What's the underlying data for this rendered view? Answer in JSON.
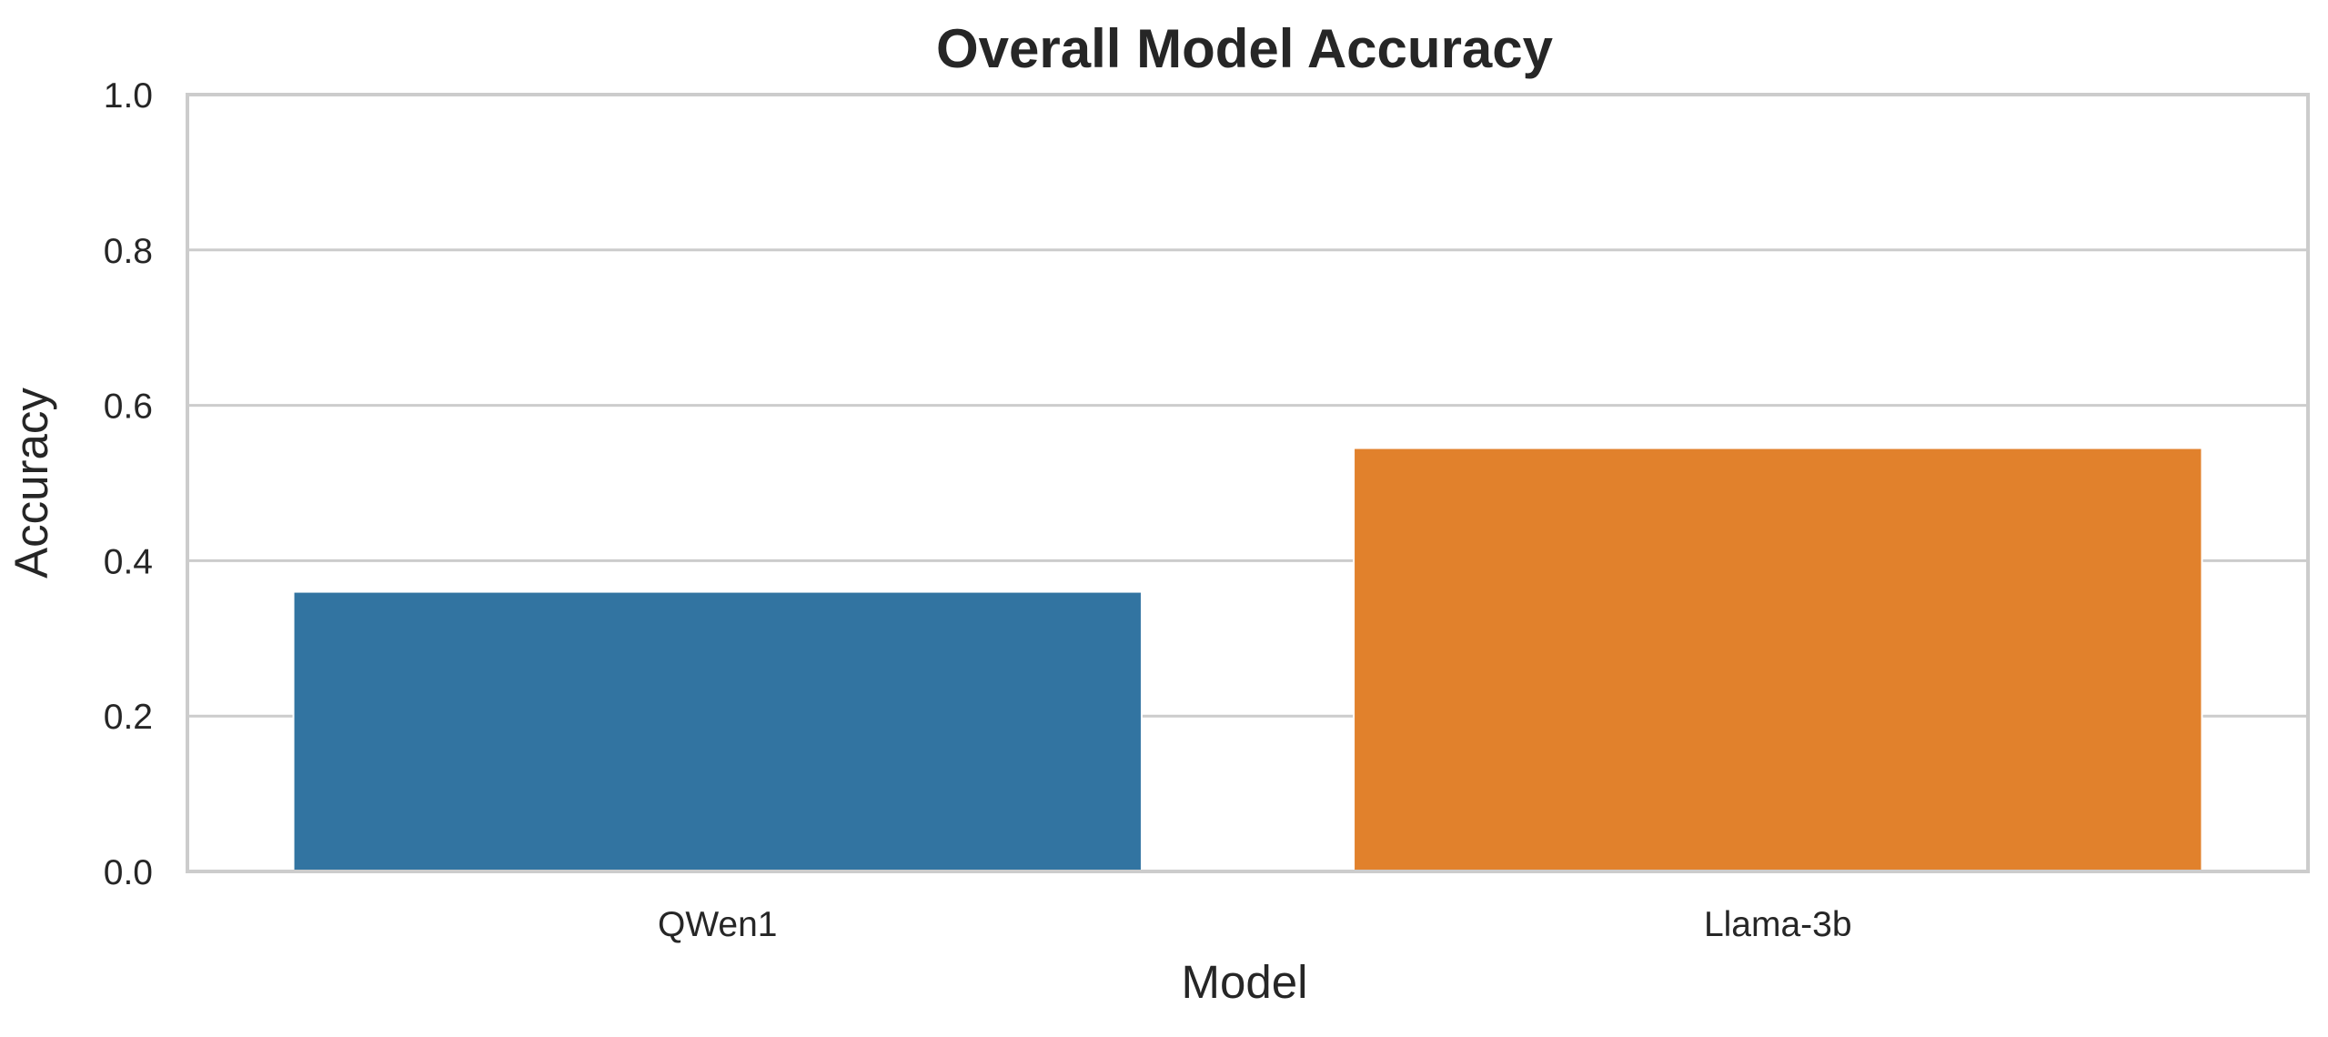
{
  "chart_data": {
    "type": "bar",
    "title": "Overall Model Accuracy",
    "xlabel": "Model",
    "ylabel": "Accuracy",
    "categories": [
      "QWen1",
      "Llama-3b"
    ],
    "values": [
      0.36,
      0.545
    ],
    "colors": [
      "#3274a1",
      "#e1812c"
    ],
    "ylim": [
      0,
      1.0
    ],
    "yticks": [
      0.0,
      0.2,
      0.4,
      0.6,
      0.8,
      1.0
    ],
    "ytick_labels": [
      "0.0",
      "0.2",
      "0.4",
      "0.6",
      "0.8",
      "1.0"
    ],
    "grid": "horizontal",
    "legend": "none"
  }
}
